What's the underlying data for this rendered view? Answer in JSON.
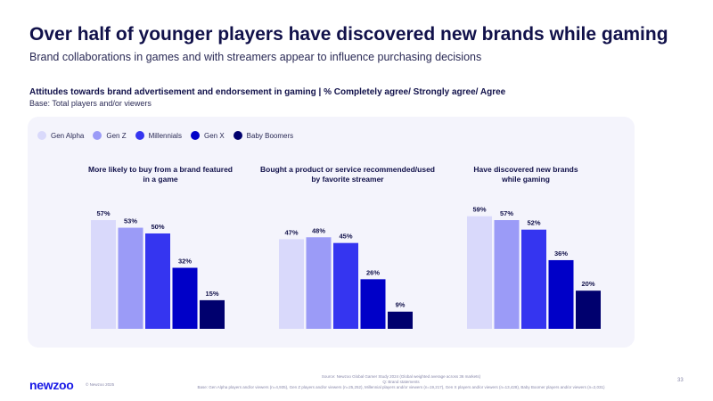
{
  "header": {
    "title": "Over half of younger players have discovered new brands while gaming",
    "subtitle": "Brand collaborations in games and with streamers appear to influence purchasing decisions",
    "chart_heading": "Attitudes towards brand advertisement and endorsement in gaming | % Completely agree/ Strongly agree/ Agree",
    "base": "Base: Total players and/or viewers"
  },
  "legend": [
    {
      "label": "Gen Alpha",
      "color": "#d9d9fb"
    },
    {
      "label": "Gen Z",
      "color": "#9b9bf7"
    },
    {
      "label": "Millennials",
      "color": "#3535f0"
    },
    {
      "label": "Gen X",
      "color": "#0000c8"
    },
    {
      "label": "Baby Boomers",
      "color": "#00006e"
    }
  ],
  "chart_data": [
    {
      "type": "bar",
      "title": "More likely to buy from a brand featured in a game",
      "categories": [
        "Gen Alpha",
        "Gen Z",
        "Millennials",
        "Gen X",
        "Baby Boomers"
      ],
      "values": [
        57,
        53,
        50,
        32,
        15
      ],
      "labels": [
        "57%",
        "53%",
        "50%",
        "32%",
        "15%"
      ]
    },
    {
      "type": "bar",
      "title": "Bought a product or service recommended/used by favorite streamer",
      "categories": [
        "Gen Alpha",
        "Gen Z",
        "Millennials",
        "Gen X",
        "Baby Boomers"
      ],
      "values": [
        47,
        48,
        45,
        26,
        9
      ],
      "labels": [
        "47%",
        "48%",
        "45%",
        "26%",
        "9%"
      ]
    },
    {
      "type": "bar",
      "title": "Have discovered new brands while gaming",
      "categories": [
        "Gen Alpha",
        "Gen Z",
        "Millennials",
        "Gen X",
        "Baby Boomers"
      ],
      "values": [
        59,
        57,
        52,
        36,
        20
      ],
      "labels": [
        "59%",
        "57%",
        "52%",
        "36%",
        "20%"
      ]
    }
  ],
  "footer": {
    "logo": "newzoo",
    "copyright": "© Newzoo 2025",
    "source_line1": "Source: Newzoo Global Gamer Study 2024 (Global weighted average across 36 markets)",
    "source_line2": "Q: Brand statements",
    "source_line3": "Base: Gen Alpha players and/or viewers (n=4,935), Gen Z players and/or viewers (n=25,252), Millennial players and/or viewers (n=19,217), Gen X players and/or viewers (n=13,428), Baby Boomer players and/or viewers (n=2,031)",
    "page_number": "33"
  }
}
